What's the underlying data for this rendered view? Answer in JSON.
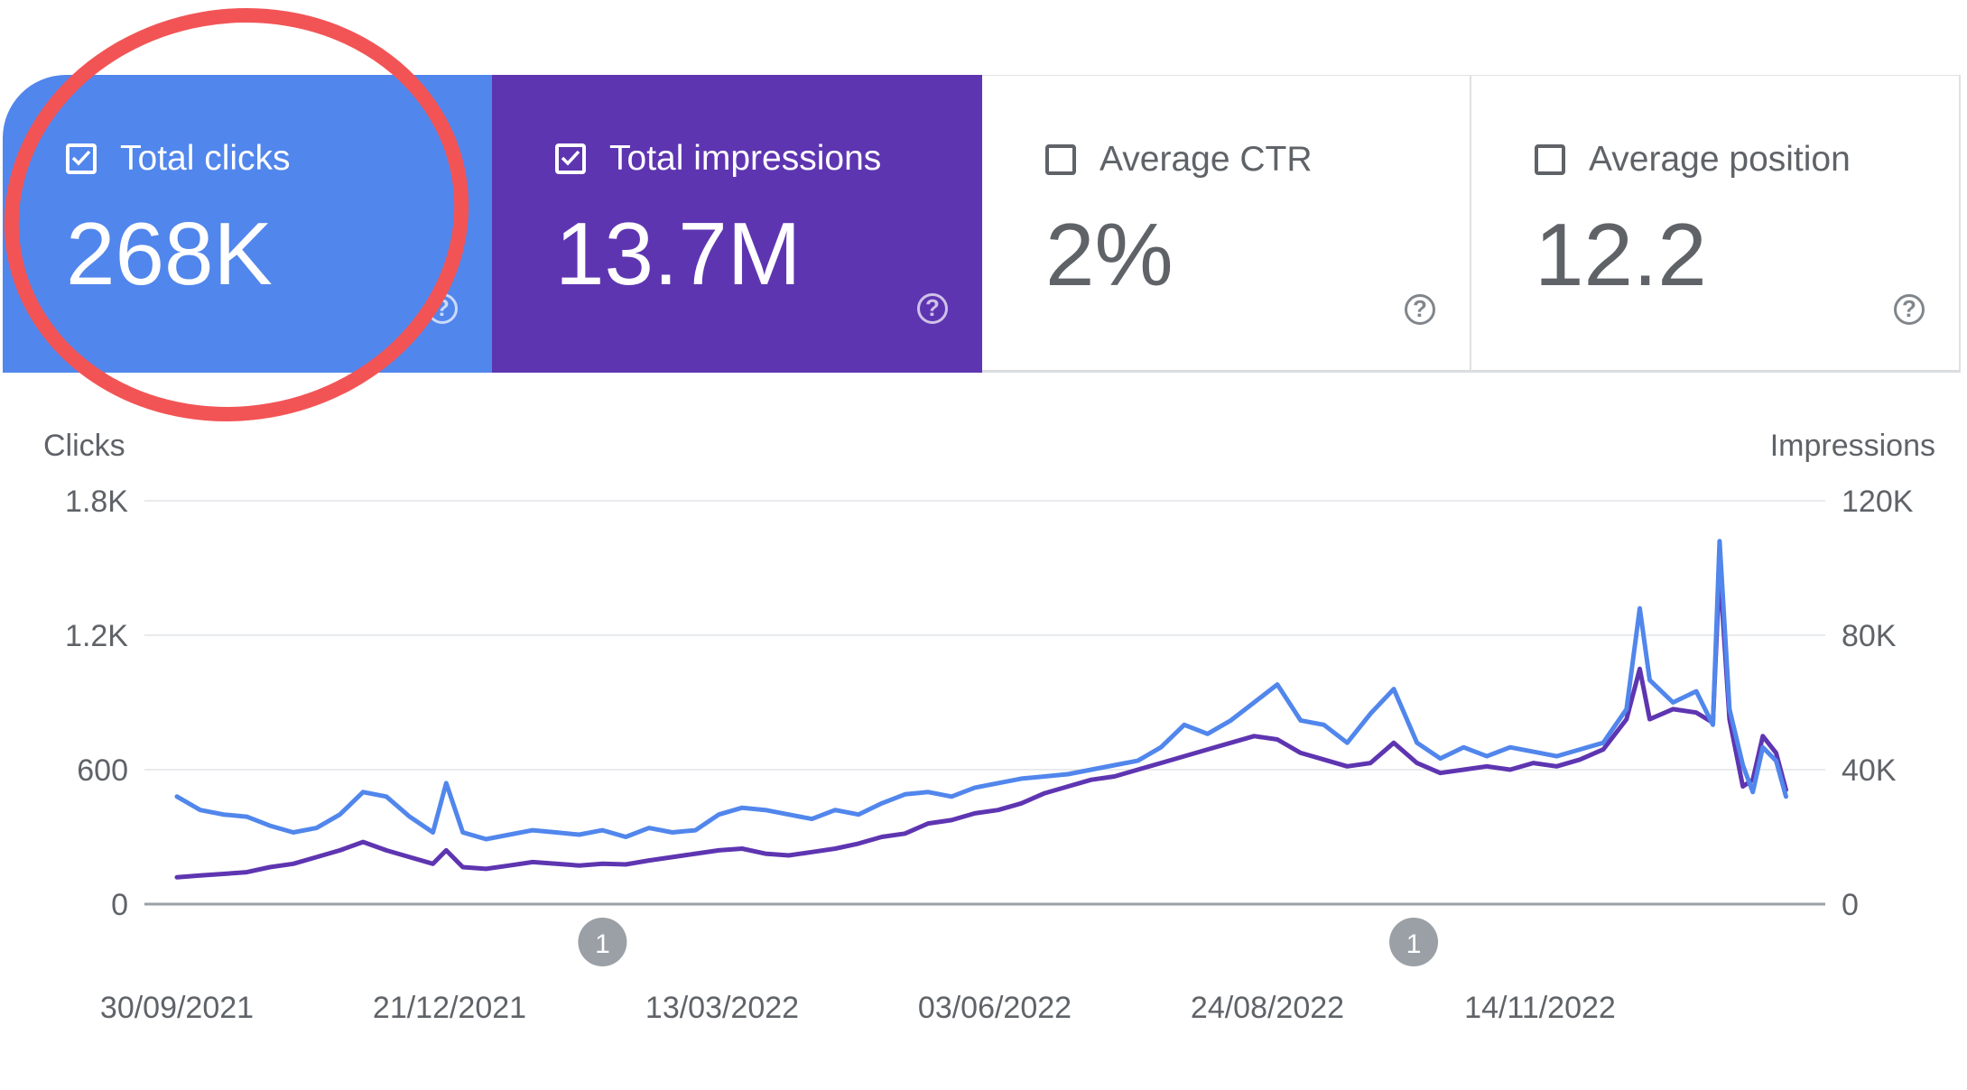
{
  "metrics": [
    {
      "label": "Total clicks",
      "value": "268K",
      "checked": true,
      "color": "#5186ec"
    },
    {
      "label": "Total impressions",
      "value": "13.7M",
      "checked": true,
      "color": "#5e35b1"
    },
    {
      "label": "Average CTR",
      "value": "2%",
      "checked": false
    },
    {
      "label": "Average position",
      "value": "12.2",
      "checked": false
    }
  ],
  "help_glyph": "?",
  "annotation_color": "#f25456",
  "chart_data": {
    "type": "line",
    "left_axis_label": "Clicks",
    "right_axis_label": "Impressions",
    "left_ticks": [
      "1.8K",
      "1.2K",
      "600",
      "0"
    ],
    "right_ticks": [
      "120K",
      "80K",
      "40K",
      "0"
    ],
    "left_ylim": [
      0,
      1800
    ],
    "right_ylim": [
      0,
      120000
    ],
    "x_ticks": [
      "30/09/2021",
      "21/12/2021",
      "13/03/2022",
      "03/06/2022",
      "24/08/2022",
      "14/11/2022"
    ],
    "x_range": [
      "2021-09-30",
      "2023-01-27"
    ],
    "grid": true,
    "event_markers": [
      {
        "date": "2022-02-05",
        "label": "1"
      },
      {
        "date": "2022-10-07",
        "label": "1"
      }
    ],
    "series": [
      {
        "name": "Clicks",
        "axis": "left",
        "color": "#5186ec",
        "points": [
          [
            "2021-09-30",
            480
          ],
          [
            "2021-10-07",
            420
          ],
          [
            "2021-10-14",
            400
          ],
          [
            "2021-10-21",
            390
          ],
          [
            "2021-10-28",
            350
          ],
          [
            "2021-11-04",
            320
          ],
          [
            "2021-11-11",
            340
          ],
          [
            "2021-11-18",
            400
          ],
          [
            "2021-11-25",
            500
          ],
          [
            "2021-12-02",
            480
          ],
          [
            "2021-12-09",
            390
          ],
          [
            "2021-12-16",
            320
          ],
          [
            "2021-12-20",
            540
          ],
          [
            "2021-12-25",
            320
          ],
          [
            "2022-01-01",
            290
          ],
          [
            "2022-01-08",
            310
          ],
          [
            "2022-01-15",
            330
          ],
          [
            "2022-01-22",
            320
          ],
          [
            "2022-01-29",
            310
          ],
          [
            "2022-02-05",
            330
          ],
          [
            "2022-02-12",
            300
          ],
          [
            "2022-02-19",
            340
          ],
          [
            "2022-02-26",
            320
          ],
          [
            "2022-03-05",
            330
          ],
          [
            "2022-03-12",
            400
          ],
          [
            "2022-03-19",
            430
          ],
          [
            "2022-03-26",
            420
          ],
          [
            "2022-04-02",
            400
          ],
          [
            "2022-04-09",
            380
          ],
          [
            "2022-04-16",
            420
          ],
          [
            "2022-04-23",
            400
          ],
          [
            "2022-04-30",
            450
          ],
          [
            "2022-05-07",
            490
          ],
          [
            "2022-05-14",
            500
          ],
          [
            "2022-05-21",
            480
          ],
          [
            "2022-05-28",
            520
          ],
          [
            "2022-06-04",
            540
          ],
          [
            "2022-06-11",
            560
          ],
          [
            "2022-06-18",
            570
          ],
          [
            "2022-06-25",
            580
          ],
          [
            "2022-07-02",
            600
          ],
          [
            "2022-07-09",
            620
          ],
          [
            "2022-07-16",
            640
          ],
          [
            "2022-07-23",
            700
          ],
          [
            "2022-07-30",
            800
          ],
          [
            "2022-08-06",
            760
          ],
          [
            "2022-08-13",
            820
          ],
          [
            "2022-08-20",
            900
          ],
          [
            "2022-08-27",
            980
          ],
          [
            "2022-09-03",
            820
          ],
          [
            "2022-09-10",
            800
          ],
          [
            "2022-09-17",
            720
          ],
          [
            "2022-09-24",
            850
          ],
          [
            "2022-10-01",
            960
          ],
          [
            "2022-10-08",
            720
          ],
          [
            "2022-10-15",
            650
          ],
          [
            "2022-10-22",
            700
          ],
          [
            "2022-10-29",
            660
          ],
          [
            "2022-11-05",
            700
          ],
          [
            "2022-11-12",
            680
          ],
          [
            "2022-11-19",
            660
          ],
          [
            "2022-11-26",
            690
          ],
          [
            "2022-12-03",
            720
          ],
          [
            "2022-12-10",
            870
          ],
          [
            "2022-12-14",
            1320
          ],
          [
            "2022-12-17",
            1000
          ],
          [
            "2022-12-24",
            900
          ],
          [
            "2022-12-31",
            950
          ],
          [
            "2023-01-05",
            800
          ],
          [
            "2023-01-07",
            1620
          ],
          [
            "2023-01-10",
            870
          ],
          [
            "2023-01-14",
            620
          ],
          [
            "2023-01-17",
            500
          ],
          [
            "2023-01-20",
            700
          ],
          [
            "2023-01-24",
            640
          ],
          [
            "2023-01-27",
            480
          ]
        ]
      },
      {
        "name": "Impressions",
        "axis": "right",
        "color": "#5e35b1",
        "points": [
          [
            "2021-09-30",
            8000
          ],
          [
            "2021-10-07",
            8500
          ],
          [
            "2021-10-14",
            9000
          ],
          [
            "2021-10-21",
            9500
          ],
          [
            "2021-10-28",
            11000
          ],
          [
            "2021-11-04",
            12000
          ],
          [
            "2021-11-11",
            14000
          ],
          [
            "2021-11-18",
            16000
          ],
          [
            "2021-11-25",
            18500
          ],
          [
            "2021-12-02",
            16000
          ],
          [
            "2021-12-09",
            14000
          ],
          [
            "2021-12-16",
            12000
          ],
          [
            "2021-12-20",
            16000
          ],
          [
            "2021-12-25",
            11000
          ],
          [
            "2022-01-01",
            10500
          ],
          [
            "2022-01-08",
            11500
          ],
          [
            "2022-01-15",
            12500
          ],
          [
            "2022-01-22",
            12000
          ],
          [
            "2022-01-29",
            11500
          ],
          [
            "2022-02-05",
            12000
          ],
          [
            "2022-02-12",
            11800
          ],
          [
            "2022-02-19",
            13000
          ],
          [
            "2022-02-26",
            14000
          ],
          [
            "2022-03-05",
            15000
          ],
          [
            "2022-03-12",
            16000
          ],
          [
            "2022-03-19",
            16500
          ],
          [
            "2022-03-26",
            15000
          ],
          [
            "2022-04-02",
            14500
          ],
          [
            "2022-04-09",
            15500
          ],
          [
            "2022-04-16",
            16500
          ],
          [
            "2022-04-23",
            18000
          ],
          [
            "2022-04-30",
            20000
          ],
          [
            "2022-05-07",
            21000
          ],
          [
            "2022-05-14",
            24000
          ],
          [
            "2022-05-21",
            25000
          ],
          [
            "2022-05-28",
            27000
          ],
          [
            "2022-06-04",
            28000
          ],
          [
            "2022-06-11",
            30000
          ],
          [
            "2022-06-18",
            33000
          ],
          [
            "2022-06-25",
            35000
          ],
          [
            "2022-07-02",
            37000
          ],
          [
            "2022-07-09",
            38000
          ],
          [
            "2022-07-16",
            40000
          ],
          [
            "2022-07-23",
            42000
          ],
          [
            "2022-07-30",
            44000
          ],
          [
            "2022-08-06",
            46000
          ],
          [
            "2022-08-13",
            48000
          ],
          [
            "2022-08-20",
            50000
          ],
          [
            "2022-08-27",
            49000
          ],
          [
            "2022-09-03",
            45000
          ],
          [
            "2022-09-10",
            43000
          ],
          [
            "2022-09-17",
            41000
          ],
          [
            "2022-09-24",
            42000
          ],
          [
            "2022-10-01",
            48000
          ],
          [
            "2022-10-08",
            42000
          ],
          [
            "2022-10-15",
            39000
          ],
          [
            "2022-10-22",
            40000
          ],
          [
            "2022-10-29",
            41000
          ],
          [
            "2022-11-05",
            40000
          ],
          [
            "2022-11-12",
            42000
          ],
          [
            "2022-11-19",
            41000
          ],
          [
            "2022-11-26",
            43000
          ],
          [
            "2022-12-03",
            46000
          ],
          [
            "2022-12-10",
            55000
          ],
          [
            "2022-12-14",
            70000
          ],
          [
            "2022-12-17",
            55000
          ],
          [
            "2022-12-24",
            58000
          ],
          [
            "2022-12-31",
            57000
          ],
          [
            "2023-01-05",
            54000
          ],
          [
            "2023-01-07",
            100000
          ],
          [
            "2023-01-10",
            55000
          ],
          [
            "2023-01-14",
            35000
          ],
          [
            "2023-01-17",
            37000
          ],
          [
            "2023-01-20",
            50000
          ],
          [
            "2023-01-24",
            45000
          ],
          [
            "2023-01-27",
            34000
          ]
        ]
      }
    ]
  }
}
